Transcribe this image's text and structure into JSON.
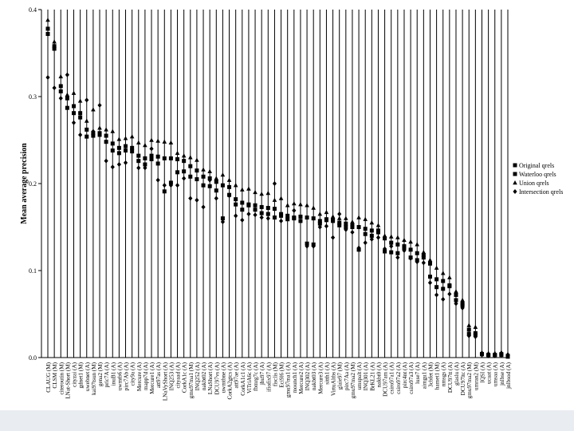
{
  "chart_data": {
    "type": "scatter",
    "title": "",
    "xlabel": "",
    "ylabel": "Mean average precision",
    "ylim": [
      0,
      0.4
    ],
    "yticks": [
      0.0,
      0.1,
      0.2,
      0.3,
      0.4
    ],
    "ytick_labels": [
      "0.0",
      "0.1",
      "0.2",
      "0.3",
      "0.4"
    ],
    "grid": "vertical lines at each run",
    "legend_position": "right",
    "categories": [
      "CLAUG (M)",
      "CLSM (M)",
      "citeroutin (M)",
      "LNat-Short (M)",
      "cityzai (A)",
      "gdnet1 (M)",
      "uwebnet (A)",
      "kai97tsun (M)",
      "gena2 (M)",
      "pric7A (A)",
      "inuB1 (A)",
      "uwmtb6 (A)",
      "pirc7Ab (A)",
      "city9a (A)",
      "Mercure (A)",
      "mapp7d (A)",
      "Mercure1 (A)",
      "att97as (A)",
      "LNaVyShort (A)",
      "INQ253 (A)",
      "cityaad (A)",
      "CorkA1c (A)",
      "gmu97ma1 (M)",
      "INQ252 (A)",
      "nakbt02 (A)",
      "LNaShort (A)",
      "DCU97vs (A)",
      "uwmtbne (A)",
      "CorkA2gtcs (A)",
      "att97ae (A)",
      "CorkA1c1 (A)",
      "ViTriA6c (A)",
      "fbmrg7c (A)",
      "jhu97 (A)",
      "ifiofix97 (A)",
      "fisclis (M)",
      "Eci9l6 (M)",
      "gmu97ma1 (A)",
      "mounch1 (A)",
      "Mercure2 (A)",
      "INQ302 (A)",
      "nakbt03 (A)",
      "Mercure3 (A)",
      "sitth1 (A)",
      "VirtuAltbs (A)",
      "glaie97 (M)",
      "pirc7Aa (A)",
      "gmu97ma2 (M)",
      "umspalt (A)",
      "INQ301 (A)",
      "BrKL21 (A)",
      "nakbt0 (A)",
      "DCU97am (A)",
      "csiro97a1 (A)",
      "csiro97a2 (A)",
      "pirc4nt (A)",
      "csiro97a3 (A)",
      "luse7 (A)",
      "aimgu1 (A)",
      "3cbfet (M)",
      "hamet1 (M)",
      "nmsgs (A)",
      "DCU97tt (A)",
      "glaslu (A)",
      "DCU97ltc (A)",
      "gmu97ma2 (M)",
      "umran2 (M)",
      "IQSI (A)",
      "ucaat (A)",
      "umsaa (A)",
      "jnlbse (A)",
      "jnlbsod (A)"
    ],
    "series": [
      {
        "name": "Original qrels",
        "marker": "square",
        "values": [
          0.372,
          0.358,
          0.312,
          0.298,
          0.289,
          0.281,
          0.262,
          0.258,
          0.258,
          0.255,
          0.246,
          0.241,
          0.243,
          0.241,
          0.232,
          0.229,
          0.232,
          0.231,
          0.229,
          0.229,
          0.228,
          0.226,
          0.22,
          0.215,
          0.208,
          0.206,
          0.202,
          0.198,
          0.196,
          0.182,
          0.178,
          0.176,
          0.175,
          0.173,
          0.172,
          0.171,
          0.165,
          0.163,
          0.161,
          0.162,
          0.161,
          0.16,
          0.157,
          0.158,
          0.157,
          0.155,
          0.154,
          0.152,
          0.15,
          0.148,
          0.146,
          0.144,
          0.137,
          0.132,
          0.13,
          0.128,
          0.124,
          0.12,
          0.115,
          0.108,
          0.09,
          0.088,
          0.082,
          0.072,
          0.062,
          0.032,
          0.026,
          0.004,
          0.003,
          0.003,
          0.003,
          0.002
        ]
      },
      {
        "name": "Waterloo qrels",
        "marker": "square",
        "values": [
          0.378,
          0.355,
          0.306,
          0.287,
          0.281,
          0.276,
          0.254,
          0.255,
          0.256,
          0.248,
          0.238,
          0.235,
          0.238,
          0.237,
          0.226,
          0.222,
          0.228,
          0.223,
          0.191,
          0.201,
          0.213,
          0.214,
          0.208,
          0.205,
          0.198,
          0.197,
          0.192,
          0.16,
          0.187,
          0.176,
          0.17,
          0.175,
          0.17,
          0.166,
          0.165,
          0.161,
          0.163,
          0.159,
          0.16,
          0.157,
          0.131,
          0.13,
          0.154,
          0.159,
          0.158,
          0.152,
          0.15,
          0.15,
          0.124,
          0.142,
          0.14,
          0.146,
          0.122,
          0.121,
          0.12,
          0.126,
          0.115,
          0.112,
          0.118,
          0.093,
          0.081,
          0.079,
          0.083,
          0.066,
          0.06,
          0.027,
          0.028,
          0.004,
          0.003,
          0.003,
          0.004,
          0.001
        ]
      },
      {
        "name": "Union qrels",
        "marker": "triangle",
        "values": [
          0.388,
          0.363,
          0.323,
          0.302,
          0.304,
          0.295,
          0.272,
          0.285,
          0.264,
          0.262,
          0.26,
          0.251,
          0.252,
          0.254,
          0.247,
          0.244,
          0.25,
          0.249,
          0.248,
          0.247,
          0.235,
          0.232,
          0.23,
          0.227,
          0.216,
          0.214,
          0.206,
          0.21,
          0.204,
          0.198,
          0.193,
          0.194,
          0.19,
          0.188,
          0.189,
          0.181,
          0.183,
          0.175,
          0.177,
          0.176,
          0.175,
          0.172,
          0.165,
          0.167,
          0.162,
          0.16,
          0.16,
          0.156,
          0.161,
          0.159,
          0.155,
          0.152,
          0.14,
          0.139,
          0.138,
          0.135,
          0.133,
          0.13,
          0.121,
          0.112,
          0.103,
          0.097,
          0.092,
          0.076,
          0.066,
          0.037,
          0.035,
          0.006,
          0.005,
          0.005,
          0.006,
          0.004
        ]
      },
      {
        "name": "Intersection qrels",
        "marker": "diamond",
        "values": [
          0.322,
          0.31,
          0.298,
          0.325,
          0.27,
          0.256,
          0.296,
          0.26,
          0.29,
          0.226,
          0.219,
          0.222,
          0.224,
          0.24,
          0.218,
          0.218,
          0.24,
          0.204,
          0.198,
          0.198,
          0.198,
          0.206,
          0.183,
          0.181,
          0.173,
          0.204,
          0.183,
          0.156,
          0.186,
          0.163,
          0.158,
          0.165,
          0.164,
          0.161,
          0.16,
          0.2,
          0.157,
          0.16,
          0.169,
          0.157,
          0.128,
          0.128,
          0.15,
          0.151,
          0.138,
          0.165,
          0.147,
          0.144,
          0.126,
          0.132,
          0.136,
          0.138,
          0.125,
          0.128,
          0.115,
          0.123,
          0.114,
          0.11,
          0.109,
          0.086,
          0.072,
          0.067,
          0.073,
          0.062,
          0.057,
          0.025,
          0.024,
          0.003,
          0.002,
          0.002,
          0.003,
          0.003
        ]
      }
    ]
  }
}
